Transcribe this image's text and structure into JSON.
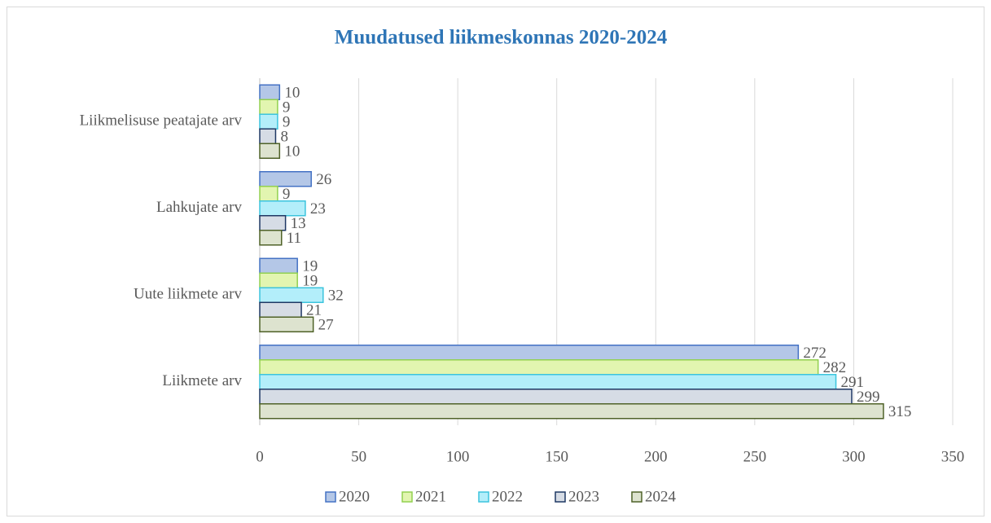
{
  "chart_data": {
    "type": "bar",
    "orientation": "horizontal",
    "title": "Muudatused liikmeskonnas 2020-2024",
    "categories": [
      "Liikmelisuse peatajate arv",
      "Lahkujate arv",
      "Uute liikmete arv",
      "Liikmete arv"
    ],
    "series": [
      {
        "name": "2020",
        "color": "#b4c7e7",
        "border": "#4472c4",
        "values": [
          10,
          26,
          19,
          272
        ]
      },
      {
        "name": "2021",
        "color": "#e2f5b0",
        "border": "#92d050",
        "values": [
          9,
          9,
          19,
          282
        ]
      },
      {
        "name": "2022",
        "color": "#b3eefa",
        "border": "#3cc4dd",
        "values": [
          9,
          23,
          32,
          291
        ]
      },
      {
        "name": "2023",
        "color": "#d6dce5",
        "border": "#1f3864",
        "values": [
          8,
          13,
          21,
          299
        ]
      },
      {
        "name": "2024",
        "color": "#dde3cf",
        "border": "#4f6228",
        "values": [
          10,
          11,
          27,
          315
        ]
      }
    ],
    "xlim": [
      0,
      350
    ],
    "xticks": [
      0,
      50,
      100,
      150,
      200,
      250,
      300,
      350
    ],
    "grid": true,
    "legend": "bottom"
  }
}
